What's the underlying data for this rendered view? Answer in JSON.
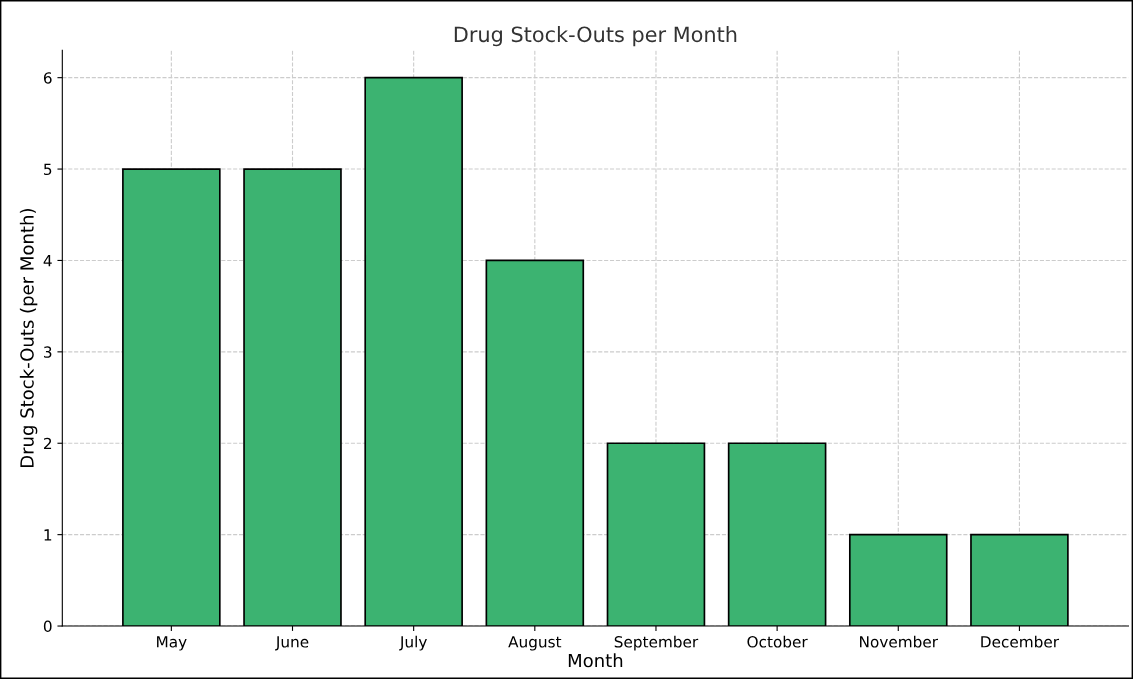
{
  "chart_data": {
    "type": "bar",
    "title": "Drug Stock-Outs per Month",
    "xlabel": "Month",
    "ylabel": "Drug Stock-Outs (per Month)",
    "categories": [
      "May",
      "June",
      "July",
      "August",
      "September",
      "October",
      "November",
      "December"
    ],
    "values": [
      5,
      5,
      6,
      4,
      2,
      2,
      1,
      1
    ],
    "color": "#3cb371",
    "ylim": [
      0,
      6.3
    ],
    "yticks": [
      0,
      1,
      2,
      3,
      4,
      5,
      6
    ],
    "grid": true
  }
}
